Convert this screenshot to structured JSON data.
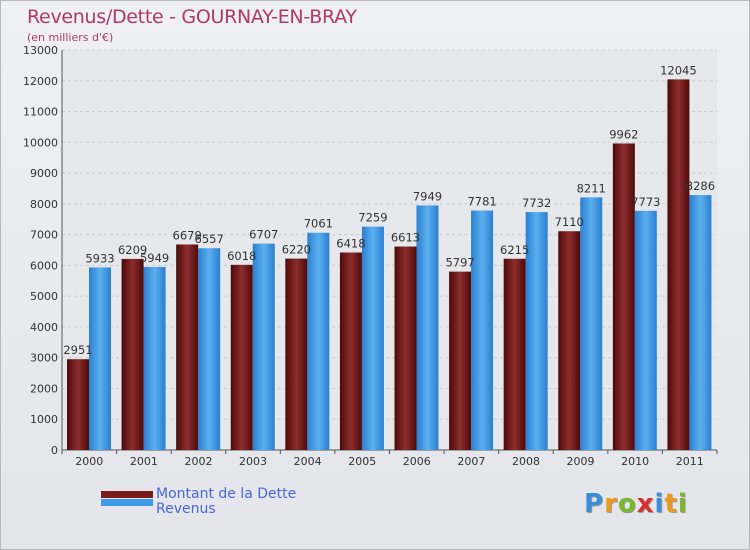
{
  "chart_data": {
    "type": "bar",
    "title": "Revenus/Dette - GOURNAY-EN-BRAY",
    "subtitle": "(en milliers d'€)",
    "categories": [
      "2000",
      "2001",
      "2002",
      "2003",
      "2004",
      "2005",
      "2006",
      "2007",
      "2008",
      "2009",
      "2010",
      "2011"
    ],
    "series": [
      {
        "name": "Montant de la Dette",
        "color": "#7a1c1c",
        "values": [
          2951,
          6209,
          6679,
          6018,
          6220,
          6418,
          6613,
          5797,
          6215,
          7110,
          9962,
          12045
        ],
        "labels": [
          "2951",
          "6209",
          "6679",
          "6018",
          "6220",
          "6418",
          "6613",
          "5797",
          "6215",
          "7110",
          "9962",
          "12045"
        ]
      },
      {
        "name": "Revenus",
        "color": "#3d9ae6",
        "values": [
          5933,
          5949,
          6557,
          6707,
          7061,
          7259,
          7949,
          7781,
          7732,
          8211,
          7773,
          8286
        ],
        "labels": [
          "5933",
          "5949",
          "6557",
          "6707",
          "7061",
          "7259",
          "7949",
          "7781",
          "7732",
          "8211",
          "7773",
          "8286"
        ]
      }
    ],
    "ylim": [
      0,
      13000
    ],
    "yticks": [
      "0",
      "1000",
      "2000",
      "3000",
      "4000",
      "5000",
      "6000",
      "7000",
      "8000",
      "9000",
      "10000",
      "11000",
      "12000",
      "13000"
    ],
    "grid": true,
    "legend": "bottom-left"
  },
  "logo": {
    "letters": [
      "P",
      "r",
      "o",
      "x",
      "i",
      "t",
      "i"
    ],
    "colors": [
      "#3a8fd8",
      "#e89b1c",
      "#78b82a",
      "#d6322d",
      "#3a8fd8",
      "#e89b1c",
      "#78b82a"
    ]
  }
}
